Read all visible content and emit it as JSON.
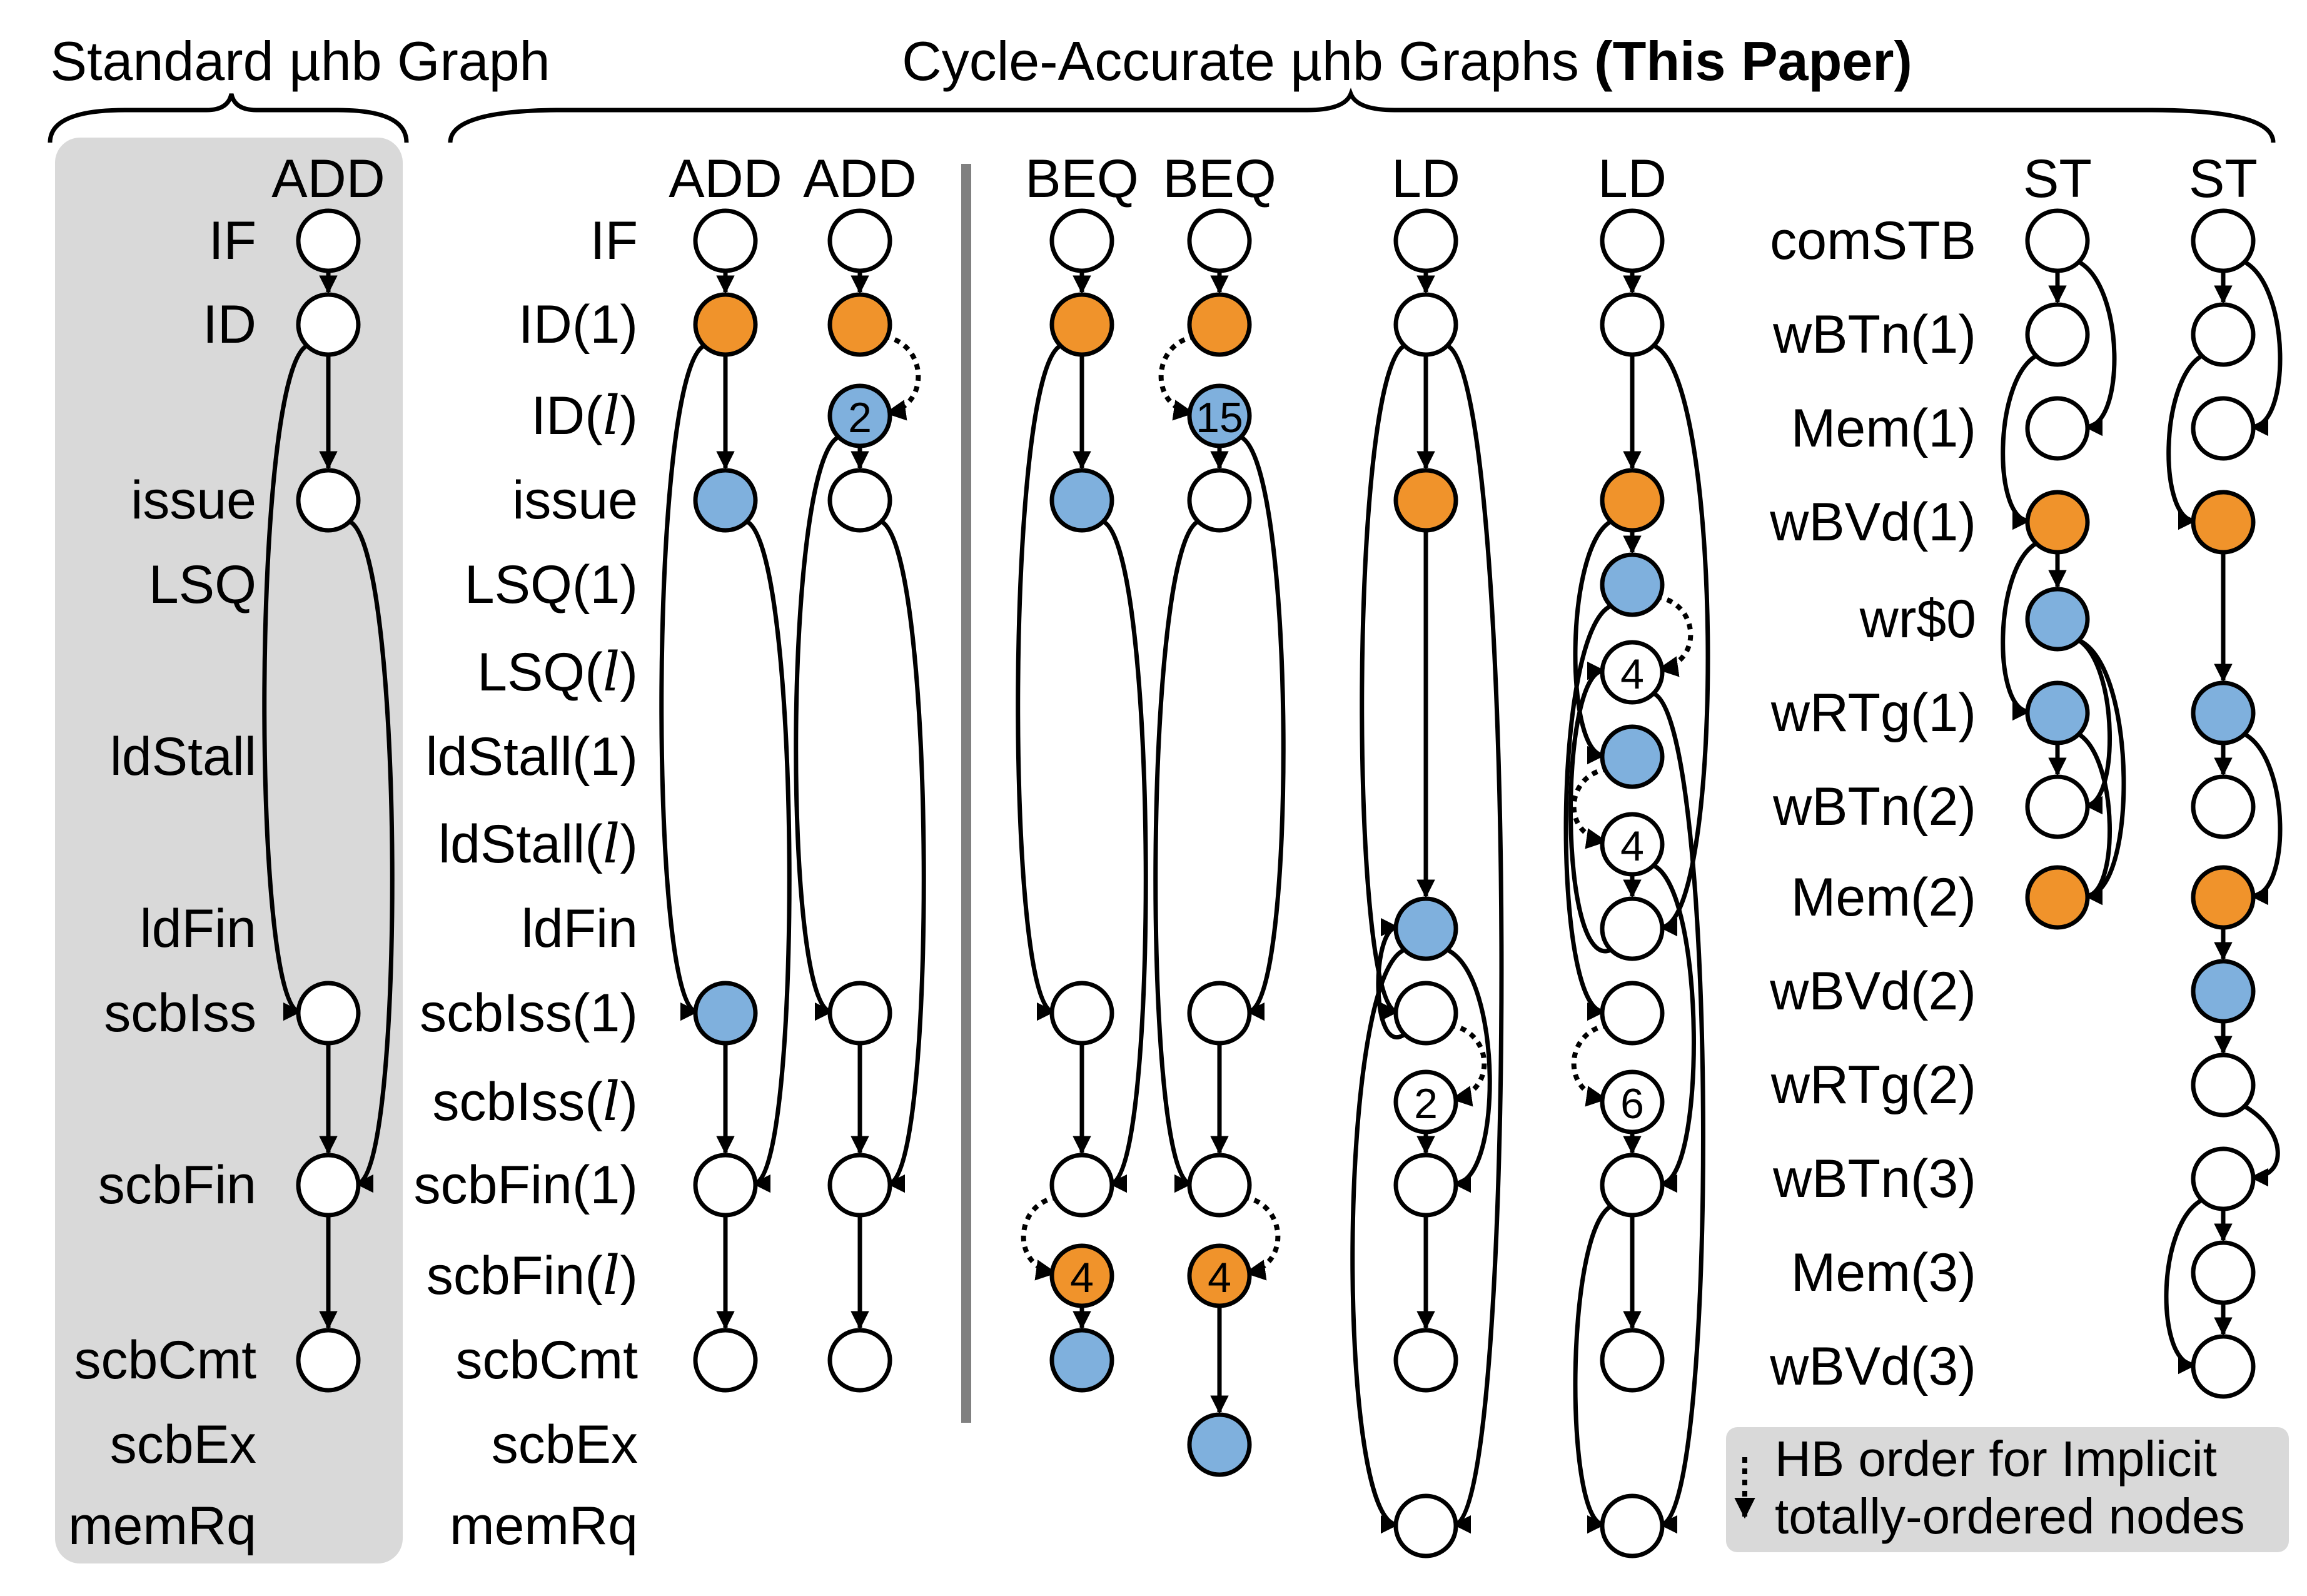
{
  "titles": {
    "standard": "Standard µhb Graph",
    "cycle_prefix": "Cycle-Accurate µhb Graphs ",
    "cycle_bold": "(This Paper)"
  },
  "colors": {
    "panel_bg": "#d9d9d9",
    "orange": "#f0932b",
    "blue": "#7fb0dd",
    "white": "#ffffff",
    "stroke": "#000000",
    "divider": "#808080",
    "legend_bg": "#d9d9d9"
  },
  "row_labels_main": [
    {
      "text": "IF",
      "row": "IF"
    },
    {
      "text": "ID",
      "row": "ID1"
    },
    {
      "text": "issue",
      "row": "issue"
    },
    {
      "text": "LSQ",
      "row": "LSQ1"
    },
    {
      "text": "ldStall",
      "row": "ldStall1"
    },
    {
      "text": "ldFin",
      "row": "ldFin"
    },
    {
      "text": "scbIss",
      "row": "scbIss1"
    },
    {
      "text": "scbFin",
      "row": "scbFin1"
    },
    {
      "text": "scbCmt",
      "row": "scbCmt"
    },
    {
      "text": "scbEx",
      "row": "scbEx"
    },
    {
      "text": "memRq",
      "row": "memRq"
    }
  ],
  "row_labels_cycle": [
    {
      "text": "IF",
      "row": "IF"
    },
    {
      "text": "ID(1)",
      "row": "ID1"
    },
    {
      "text": "ID(l)",
      "row": "IDl"
    },
    {
      "text": "issue",
      "row": "issue"
    },
    {
      "text": "LSQ(1)",
      "row": "LSQ1"
    },
    {
      "text": "LSQ(l)",
      "row": "LSQl"
    },
    {
      "text": "ldStall(1)",
      "row": "ldStall1"
    },
    {
      "text": "ldStall(l)",
      "row": "ldStalll"
    },
    {
      "text": "ldFin",
      "row": "ldFin"
    },
    {
      "text": "scbIss(1)",
      "row": "scbIss1"
    },
    {
      "text": "scbIss(l)",
      "row": "scbIssl"
    },
    {
      "text": "scbFin(1)",
      "row": "scbFin1"
    },
    {
      "text": "scbFin(l)",
      "row": "scbFinl"
    },
    {
      "text": "scbCmt",
      "row": "scbCmt"
    },
    {
      "text": "scbEx",
      "row": "scbEx"
    },
    {
      "text": "memRq",
      "row": "memRq"
    }
  ],
  "row_labels_store": [
    {
      "text": "comSTB",
      "row": "s0"
    },
    {
      "text": "wBTn(1)",
      "row": "s1"
    },
    {
      "text": "Mem(1)",
      "row": "s2"
    },
    {
      "text": "wBVd(1)",
      "row": "s3"
    },
    {
      "text": "wr$0",
      "row": "s4"
    },
    {
      "text": "wRTg(1)",
      "row": "s5"
    },
    {
      "text": "wBTn(2)",
      "row": "s6"
    },
    {
      "text": "Mem(2)",
      "row": "s7"
    },
    {
      "text": "wBVd(2)",
      "row": "s8"
    },
    {
      "text": "wRTg(2)",
      "row": "s9"
    },
    {
      "text": "wBTn(3)",
      "row": "s10"
    },
    {
      "text": "Mem(3)",
      "row": "s11"
    },
    {
      "text": "wBVd(3)",
      "row": "s12"
    }
  ],
  "columns": [
    {
      "id": "std",
      "label": "ADD"
    },
    {
      "id": "add1",
      "label": "ADD"
    },
    {
      "id": "add2",
      "label": "ADD"
    },
    {
      "id": "beq1",
      "label": "BEQ"
    },
    {
      "id": "beq2",
      "label": "BEQ"
    },
    {
      "id": "ld1",
      "label": "LD"
    },
    {
      "id": "ld2",
      "label": "LD"
    },
    {
      "id": "st1",
      "label": "ST"
    },
    {
      "id": "st2",
      "label": "ST"
    }
  ],
  "nodes": [
    {
      "id": "std_IF",
      "col": "std",
      "row": "IF",
      "fill": "white"
    },
    {
      "id": "std_ID",
      "col": "std",
      "row": "ID1",
      "fill": "white"
    },
    {
      "id": "std_issue",
      "col": "std",
      "row": "issue",
      "fill": "white"
    },
    {
      "id": "std_scbIss",
      "col": "std",
      "row": "scbIss1",
      "fill": "white"
    },
    {
      "id": "std_scbFin",
      "col": "std",
      "row": "scbFin1",
      "fill": "white"
    },
    {
      "id": "std_scbCmt",
      "col": "std",
      "row": "scbCmt",
      "fill": "white"
    },
    {
      "id": "a1_IF",
      "col": "add1",
      "row": "IF",
      "fill": "white"
    },
    {
      "id": "a1_ID",
      "col": "add1",
      "row": "ID1",
      "fill": "orange"
    },
    {
      "id": "a1_issue",
      "col": "add1",
      "row": "issue",
      "fill": "blue"
    },
    {
      "id": "a1_scbIss",
      "col": "add1",
      "row": "scbIss1",
      "fill": "blue"
    },
    {
      "id": "a1_scbFin",
      "col": "add1",
      "row": "scbFin1",
      "fill": "white"
    },
    {
      "id": "a1_scbCmt",
      "col": "add1",
      "row": "scbCmt",
      "fill": "white"
    },
    {
      "id": "a2_IF",
      "col": "add2",
      "row": "IF",
      "fill": "white"
    },
    {
      "id": "a2_ID",
      "col": "add2",
      "row": "ID1",
      "fill": "orange"
    },
    {
      "id": "a2_IDl",
      "col": "add2",
      "row": "IDl",
      "fill": "blue",
      "num": "2"
    },
    {
      "id": "a2_issue",
      "col": "add2",
      "row": "issue",
      "fill": "white"
    },
    {
      "id": "a2_scbIss",
      "col": "add2",
      "row": "scbIss1",
      "fill": "white"
    },
    {
      "id": "a2_scbFin",
      "col": "add2",
      "row": "scbFin1",
      "fill": "white"
    },
    {
      "id": "a2_scbCmt",
      "col": "add2",
      "row": "scbCmt",
      "fill": "white"
    },
    {
      "id": "b1_IF",
      "col": "beq1",
      "row": "IF",
      "fill": "white"
    },
    {
      "id": "b1_ID",
      "col": "beq1",
      "row": "ID1",
      "fill": "orange"
    },
    {
      "id": "b1_issue",
      "col": "beq1",
      "row": "issue",
      "fill": "blue"
    },
    {
      "id": "b1_scbIss",
      "col": "beq1",
      "row": "scbIss1",
      "fill": "white"
    },
    {
      "id": "b1_scbFin",
      "col": "beq1",
      "row": "scbFin1",
      "fill": "white"
    },
    {
      "id": "b1_scbFinl",
      "col": "beq1",
      "row": "scbFinl",
      "fill": "orange",
      "num": "4"
    },
    {
      "id": "b1_scbCmt",
      "col": "beq1",
      "row": "scbCmt",
      "fill": "blue"
    },
    {
      "id": "b2_IF",
      "col": "beq2",
      "row": "IF",
      "fill": "white"
    },
    {
      "id": "b2_ID",
      "col": "beq2",
      "row": "ID1",
      "fill": "orange"
    },
    {
      "id": "b2_IDl",
      "col": "beq2",
      "row": "IDl",
      "fill": "blue",
      "num": "15"
    },
    {
      "id": "b2_issue",
      "col": "beq2",
      "row": "issue",
      "fill": "white"
    },
    {
      "id": "b2_scbIss",
      "col": "beq2",
      "row": "scbIss1",
      "fill": "white"
    },
    {
      "id": "b2_scbFin",
      "col": "beq2",
      "row": "scbFin1",
      "fill": "white"
    },
    {
      "id": "b2_scbFinl",
      "col": "beq2",
      "row": "scbFinl",
      "fill": "orange",
      "num": "4"
    },
    {
      "id": "b2_scbEx",
      "col": "beq2",
      "row": "scbEx",
      "fill": "blue"
    },
    {
      "id": "l1_IF",
      "col": "ld1",
      "row": "IF",
      "fill": "white"
    },
    {
      "id": "l1_ID",
      "col": "ld1",
      "row": "ID1",
      "fill": "white"
    },
    {
      "id": "l1_issue",
      "col": "ld1",
      "row": "issue",
      "fill": "orange"
    },
    {
      "id": "l1_ldFin",
      "col": "ld1",
      "row": "ldFin",
      "fill": "blue"
    },
    {
      "id": "l1_scbIss",
      "col": "ld1",
      "row": "scbIss1",
      "fill": "white"
    },
    {
      "id": "l1_scbIssl",
      "col": "ld1",
      "row": "scbIssl",
      "fill": "white",
      "num": "2"
    },
    {
      "id": "l1_scbFin",
      "col": "ld1",
      "row": "scbFin1",
      "fill": "white"
    },
    {
      "id": "l1_scbCmt",
      "col": "ld1",
      "row": "scbCmt",
      "fill": "white"
    },
    {
      "id": "l1_memRq",
      "col": "ld1",
      "row": "memRq",
      "fill": "white"
    },
    {
      "id": "l2_IF",
      "col": "ld2",
      "row": "IF",
      "fill": "white"
    },
    {
      "id": "l2_ID",
      "col": "ld2",
      "row": "ID1",
      "fill": "white"
    },
    {
      "id": "l2_issue",
      "col": "ld2",
      "row": "issue",
      "fill": "orange"
    },
    {
      "id": "l2_LSQ1",
      "col": "ld2",
      "row": "LSQ1",
      "fill": "blue"
    },
    {
      "id": "l2_LSQl",
      "col": "ld2",
      "row": "LSQl",
      "fill": "white",
      "num": "4"
    },
    {
      "id": "l2_ldStall1",
      "col": "ld2",
      "row": "ldStall1",
      "fill": "blue"
    },
    {
      "id": "l2_ldStalll",
      "col": "ld2",
      "row": "ldStalll",
      "fill": "white",
      "num": "4"
    },
    {
      "id": "l2_ldFin",
      "col": "ld2",
      "row": "ldFin",
      "fill": "white"
    },
    {
      "id": "l2_scbIss",
      "col": "ld2",
      "row": "scbIss1",
      "fill": "white"
    },
    {
      "id": "l2_scbIssl",
      "col": "ld2",
      "row": "scbIssl",
      "fill": "white",
      "num": "6"
    },
    {
      "id": "l2_scbFin",
      "col": "ld2",
      "row": "scbFin1",
      "fill": "white"
    },
    {
      "id": "l2_scbCmt",
      "col": "ld2",
      "row": "scbCmt",
      "fill": "white"
    },
    {
      "id": "l2_memRq",
      "col": "ld2",
      "row": "memRq",
      "fill": "white"
    },
    {
      "id": "s1_0",
      "col": "st1",
      "row": "s0",
      "fill": "white"
    },
    {
      "id": "s1_1",
      "col": "st1",
      "row": "s1",
      "fill": "white"
    },
    {
      "id": "s1_2",
      "col": "st1",
      "row": "s2",
      "fill": "white"
    },
    {
      "id": "s1_3",
      "col": "st1",
      "row": "s3",
      "fill": "orange"
    },
    {
      "id": "s1_4",
      "col": "st1",
      "row": "s4",
      "fill": "blue"
    },
    {
      "id": "s1_5",
      "col": "st1",
      "row": "s5",
      "fill": "blue"
    },
    {
      "id": "s1_6",
      "col": "st1",
      "row": "s6",
      "fill": "white"
    },
    {
      "id": "s1_7",
      "col": "st1",
      "row": "s7",
      "fill": "orange"
    },
    {
      "id": "s2_0",
      "col": "st2",
      "row": "s0",
      "fill": "white"
    },
    {
      "id": "s2_1",
      "col": "st2",
      "row": "s1",
      "fill": "white"
    },
    {
      "id": "s2_2",
      "col": "st2",
      "row": "s2",
      "fill": "white"
    },
    {
      "id": "s2_3",
      "col": "st2",
      "row": "s3",
      "fill": "orange"
    },
    {
      "id": "s2_5",
      "col": "st2",
      "row": "s5",
      "fill": "blue"
    },
    {
      "id": "s2_6",
      "col": "st2",
      "row": "s6",
      "fill": "white"
    },
    {
      "id": "s2_7",
      "col": "st2",
      "row": "s7",
      "fill": "orange"
    },
    {
      "id": "s2_8",
      "col": "st2",
      "row": "s8",
      "fill": "blue"
    },
    {
      "id": "s2_9",
      "col": "st2",
      "row": "s9",
      "fill": "white"
    },
    {
      "id": "s2_10",
      "col": "st2",
      "row": "s10",
      "fill": "white"
    },
    {
      "id": "s2_11",
      "col": "st2",
      "row": "s11",
      "fill": "white"
    },
    {
      "id": "s2_12",
      "col": "st2",
      "row": "s12",
      "fill": "white"
    }
  ],
  "edges": [
    {
      "from": "std_IF",
      "to": "std_ID",
      "kind": "straight"
    },
    {
      "from": "std_ID",
      "to": "std_issue",
      "kind": "straight"
    },
    {
      "from": "std_ID",
      "to": "std_scbIss",
      "kind": "arc",
      "side": "left"
    },
    {
      "from": "std_issue",
      "to": "std_scbFin",
      "kind": "arc",
      "side": "right"
    },
    {
      "from": "std_scbIss",
      "to": "std_scbFin",
      "kind": "straight"
    },
    {
      "from": "std_scbFin",
      "to": "std_scbCmt",
      "kind": "straight"
    },
    {
      "from": "a1_IF",
      "to": "a1_ID",
      "kind": "straight"
    },
    {
      "from": "a1_ID",
      "to": "a1_issue",
      "kind": "straight"
    },
    {
      "from": "a1_ID",
      "to": "a1_scbIss",
      "kind": "arc",
      "side": "left"
    },
    {
      "from": "a1_issue",
      "to": "a1_scbFin",
      "kind": "arc",
      "side": "right"
    },
    {
      "from": "a1_scbIss",
      "to": "a1_scbFin",
      "kind": "straight"
    },
    {
      "from": "a1_scbFin",
      "to": "a1_scbCmt",
      "kind": "straight"
    },
    {
      "from": "a2_IF",
      "to": "a2_ID",
      "kind": "straight"
    },
    {
      "from": "a2_ID",
      "to": "a2_IDl",
      "kind": "dotted",
      "side": "right"
    },
    {
      "from": "a2_IDl",
      "to": "a2_issue",
      "kind": "straight"
    },
    {
      "from": "a2_IDl",
      "to": "a2_scbIss",
      "kind": "arc",
      "side": "left"
    },
    {
      "from": "a2_issue",
      "to": "a2_scbFin",
      "kind": "arc",
      "side": "right"
    },
    {
      "from": "a2_scbIss",
      "to": "a2_scbFin",
      "kind": "straight"
    },
    {
      "from": "a2_scbFin",
      "to": "a2_scbCmt",
      "kind": "straight"
    },
    {
      "from": "b1_IF",
      "to": "b1_ID",
      "kind": "straight"
    },
    {
      "from": "b1_ID",
      "to": "b1_issue",
      "kind": "straight"
    },
    {
      "from": "b1_ID",
      "to": "b1_scbIss",
      "kind": "arc",
      "side": "left"
    },
    {
      "from": "b1_issue",
      "to": "b1_scbFin",
      "kind": "arc",
      "side": "right"
    },
    {
      "from": "b1_scbIss",
      "to": "b1_scbFin",
      "kind": "straight"
    },
    {
      "from": "b1_scbFin",
      "to": "b1_scbFinl",
      "kind": "dotted",
      "side": "left"
    },
    {
      "from": "b1_scbFinl",
      "to": "b1_scbCmt",
      "kind": "straight"
    },
    {
      "from": "b2_IF",
      "to": "b2_ID",
      "kind": "straight"
    },
    {
      "from": "b2_ID",
      "to": "b2_IDl",
      "kind": "dotted",
      "side": "left"
    },
    {
      "from": "b2_IDl",
      "to": "b2_issue",
      "kind": "straight"
    },
    {
      "from": "b2_IDl",
      "to": "b2_scbIss",
      "kind": "arc",
      "side": "right"
    },
    {
      "from": "b2_issue",
      "to": "b2_scbFin",
      "kind": "arc",
      "side": "left"
    },
    {
      "from": "b2_scbIss",
      "to": "b2_scbFin",
      "kind": "straight"
    },
    {
      "from": "b2_scbFin",
      "to": "b2_scbFinl",
      "kind": "dotted",
      "side": "right"
    },
    {
      "from": "b2_scbFinl",
      "to": "b2_scbEx",
      "kind": "straight"
    },
    {
      "from": "l1_IF",
      "to": "l1_ID",
      "kind": "straight"
    },
    {
      "from": "l1_ID",
      "to": "l1_issue",
      "kind": "straight"
    },
    {
      "from": "l1_ID",
      "to": "l1_scbIss",
      "kind": "arc",
      "side": "left"
    },
    {
      "from": "l1_issue",
      "to": "l1_ldFin",
      "kind": "straight"
    },
    {
      "from": "l1_ID",
      "to": "l1_memRq",
      "kind": "arc",
      "side": "right",
      "bulge": 100
    },
    {
      "from": "l1_ldFin",
      "to": "l1_scbFin",
      "kind": "arc",
      "side": "right"
    },
    {
      "from": "l1_scbIss",
      "to": "l1_ldFin",
      "kind": "arc",
      "side": "left",
      "bulge": 40
    },
    {
      "from": "l1_scbIss",
      "to": "l1_scbIssl",
      "kind": "dotted",
      "side": "right"
    },
    {
      "from": "l1_scbIssl",
      "to": "l1_scbFin",
      "kind": "straight"
    },
    {
      "from": "l1_scbFin",
      "to": "l1_scbCmt",
      "kind": "straight"
    },
    {
      "from": "l1_ldFin",
      "to": "l1_memRq",
      "kind": "arc",
      "side": "left",
      "bulge": 95
    },
    {
      "from": "l2_IF",
      "to": "l2_ID",
      "kind": "straight"
    },
    {
      "from": "l2_ID",
      "to": "l2_issue",
      "kind": "straight"
    },
    {
      "from": "l2_ID",
      "to": "l2_ldFin",
      "kind": "arc",
      "side": "right",
      "bulge": 100
    },
    {
      "from": "l2_issue",
      "to": "l2_LSQ1",
      "kind": "straight"
    },
    {
      "from": "l2_issue",
      "to": "l2_ldStall1",
      "kind": "arc",
      "side": "left",
      "bulge": 60
    },
    {
      "from": "l2_LSQ1",
      "to": "l2_LSQl",
      "kind": "dotted",
      "side": "right"
    },
    {
      "from": "l2_LSQ1",
      "to": "l2_scbIss",
      "kind": "arc",
      "side": "left",
      "bulge": 80
    },
    {
      "from": "l2_LSQl",
      "to": "l2_memRq",
      "kind": "arc",
      "side": "right",
      "bulge": 90
    },
    {
      "from": "l2_ldStall1",
      "to": "l2_ldStalll",
      "kind": "dotted",
      "side": "left"
    },
    {
      "from": "l2_ldStalll",
      "to": "l2_ldFin",
      "kind": "straight"
    },
    {
      "from": "l2_ldStalll",
      "to": "l2_scbFin",
      "kind": "arc",
      "side": "right",
      "bulge": 70
    },
    {
      "from": "l2_ldFin",
      "to": "l2_LSQl",
      "kind": "arc",
      "side": "left",
      "bulge": 70
    },
    {
      "from": "l2_scbIss",
      "to": "l2_scbIssl",
      "kind": "dotted",
      "side": "left"
    },
    {
      "from": "l2_scbIssl",
      "to": "l2_scbFin",
      "kind": "straight"
    },
    {
      "from": "l2_scbFin",
      "to": "l2_scbCmt",
      "kind": "straight"
    },
    {
      "from": "l2_scbFin",
      "to": "l2_memRq",
      "kind": "arc",
      "side": "left",
      "bulge": 60
    },
    {
      "from": "s1_0",
      "to": "s1_1",
      "kind": "straight"
    },
    {
      "from": "s1_0",
      "to": "s1_2",
      "kind": "arc",
      "side": "right",
      "bulge": 60
    },
    {
      "from": "s1_1",
      "to": "s1_3",
      "kind": "arc",
      "side": "left",
      "bulge": 55
    },
    {
      "from": "s1_3",
      "to": "s1_4",
      "kind": "straight"
    },
    {
      "from": "s1_3",
      "to": "s1_5",
      "kind": "arc",
      "side": "left",
      "bulge": 55
    },
    {
      "from": "s1_4",
      "to": "s1_6",
      "kind": "arc",
      "side": "right",
      "bulge": 50
    },
    {
      "from": "s1_4",
      "to": "s1_7",
      "kind": "arc",
      "side": "right",
      "bulge": 80
    },
    {
      "from": "s1_5",
      "to": "s1_6",
      "kind": "straight"
    },
    {
      "from": "s1_5",
      "to": "s1_7",
      "kind": "arc",
      "side": "right",
      "bulge": 50
    },
    {
      "from": "s2_0",
      "to": "s2_1",
      "kind": "straight"
    },
    {
      "from": "s2_0",
      "to": "s2_2",
      "kind": "arc",
      "side": "right",
      "bulge": 60
    },
    {
      "from": "s2_1",
      "to": "s2_3",
      "kind": "arc",
      "side": "left",
      "bulge": 55
    },
    {
      "from": "s2_3",
      "to": "s2_5",
      "kind": "straight"
    },
    {
      "from": "s2_5",
      "to": "s2_6",
      "kind": "straight"
    },
    {
      "from": "s2_5",
      "to": "s2_7",
      "kind": "arc",
      "side": "right",
      "bulge": 60
    },
    {
      "from": "s2_7",
      "to": "s2_8",
      "kind": "straight"
    },
    {
      "from": "s2_8",
      "to": "s2_9",
      "kind": "straight"
    },
    {
      "from": "s2_9",
      "to": "s2_10",
      "kind": "arc",
      "side": "right",
      "bulge": 55
    },
    {
      "from": "s2_10",
      "to": "s2_11",
      "kind": "straight"
    },
    {
      "from": "s2_10",
      "to": "s2_12",
      "kind": "arc",
      "side": "left",
      "bulge": 60
    },
    {
      "from": "s2_11",
      "to": "s2_12",
      "kind": "straight"
    }
  ],
  "legend": {
    "line1": "HB order for Implicit",
    "line2": "totally-ordered nodes"
  }
}
